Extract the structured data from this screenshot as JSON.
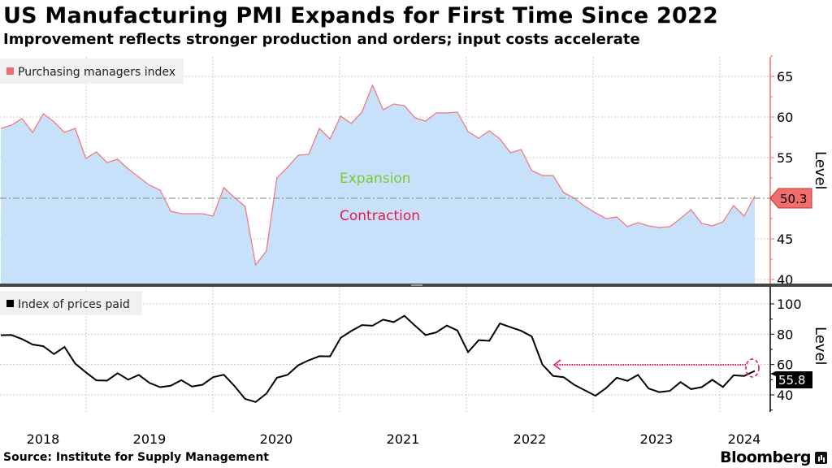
{
  "header": {
    "title": "US Manufacturing PMI Expands for First Time Since 2022",
    "subtitle": "Improvement reflects stronger production and orders; input costs accelerate"
  },
  "footer": {
    "source": "Source: Institute for Supply Management",
    "brand": "Bloomberg"
  },
  "colors": {
    "pmi_line": "#f07a80",
    "pmi_fill": "#c8e1fb",
    "pmi_legend": "#f26d6d",
    "prices_line": "#000000",
    "expansion": "#7dc832",
    "contraction": "#e8194a",
    "annotation": "#e8194a"
  },
  "chart_data": [
    {
      "type": "area",
      "legend": "Purchasing managers index",
      "legend_placement": "top-left",
      "ylabel": "Level",
      "ylim": [
        39,
        68
      ],
      "yticks": [
        40,
        45,
        50,
        55,
        60,
        65
      ],
      "grid": true,
      "reference_line": 50,
      "annotations": [
        "Expansion",
        "Contraction"
      ],
      "last_value_label": "50.3",
      "x_start": "2018-04",
      "x_end": "2024-03",
      "frequency": "monthly",
      "values": [
        58.6,
        59.0,
        59.8,
        58.1,
        60.4,
        59.4,
        58.1,
        58.6,
        54.9,
        55.7,
        54.4,
        54.8,
        53.6,
        52.6,
        51.6,
        51.0,
        48.4,
        48.1,
        48.1,
        48.1,
        47.8,
        51.3,
        50.1,
        49.0,
        41.8,
        43.5,
        52.5,
        53.8,
        55.3,
        55.4,
        58.6,
        57.3,
        60.1,
        59.2,
        60.6,
        63.9,
        60.9,
        61.6,
        61.4,
        59.9,
        59.5,
        60.5,
        60.5,
        60.6,
        58.2,
        57.4,
        58.3,
        57.3,
        55.6,
        56.0,
        53.4,
        52.8,
        52.8,
        50.7,
        50.0,
        49.0,
        48.2,
        47.5,
        47.7,
        46.5,
        47.0,
        46.6,
        46.4,
        46.5,
        47.5,
        48.6,
        46.9,
        46.6,
        47.1,
        49.1,
        47.8,
        50.3
      ]
    },
    {
      "type": "line",
      "legend": "Index of prices paid",
      "legend_placement": "top-left",
      "ylabel": "Level",
      "ylim": [
        28,
        106
      ],
      "yticks": [
        40,
        60,
        80,
        100
      ],
      "grid": true,
      "last_value_label": "55.8",
      "x_start": "2018-04",
      "x_end": "2024-03",
      "frequency": "monthly",
      "xticks": [
        "2018",
        "2019",
        "2020",
        "2021",
        "2022",
        "2023",
        "2024"
      ],
      "values": [
        79.3,
        79.5,
        76.8,
        73.2,
        72.1,
        66.9,
        71.6,
        60.7,
        54.9,
        49.6,
        49.4,
        54.3,
        50.0,
        53.2,
        47.9,
        45.1,
        46.0,
        49.7,
        45.5,
        46.7,
        51.7,
        53.3,
        45.9,
        37.4,
        35.3,
        40.8,
        51.3,
        53.2,
        59.5,
        62.8,
        65.5,
        65.4,
        77.6,
        82.1,
        86.0,
        85.6,
        89.6,
        88.0,
        92.1,
        85.7,
        79.4,
        81.2,
        85.7,
        82.4,
        68.2,
        76.1,
        75.6,
        87.1,
        84.6,
        82.2,
        78.5,
        60.0,
        52.5,
        51.7,
        46.6,
        43.0,
        39.4,
        44.5,
        51.3,
        49.2,
        53.2,
        44.2,
        41.8,
        42.6,
        48.4,
        43.8,
        45.1,
        49.9,
        45.2,
        52.9,
        52.5,
        55.8
      ]
    }
  ]
}
